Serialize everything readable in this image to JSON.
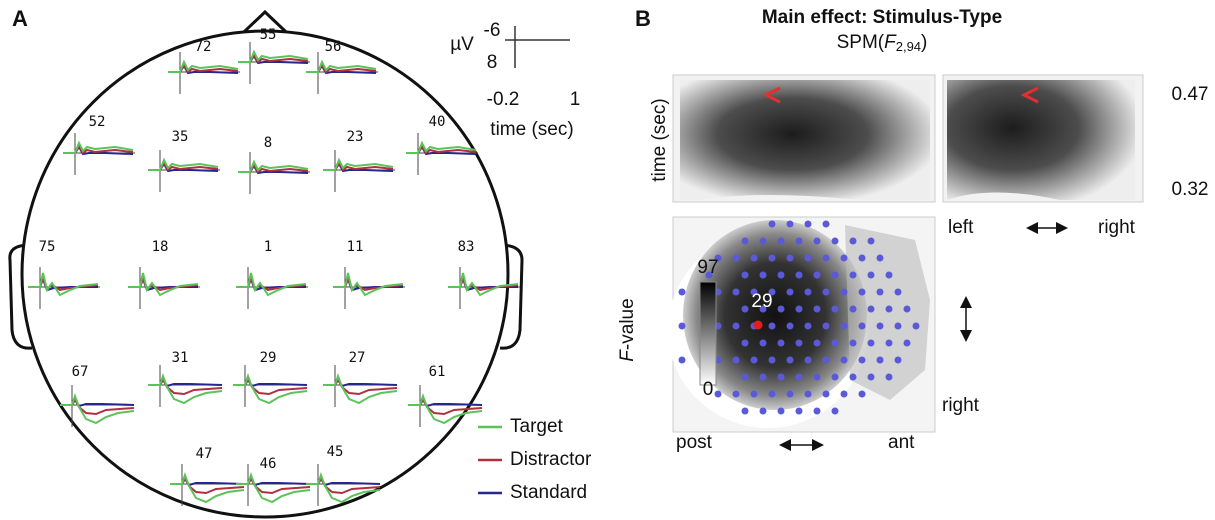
{
  "panel_a": {
    "label": "A",
    "electrodes": [
      "72",
      "55",
      "56",
      "52",
      "35",
      "8",
      "23",
      "40",
      "75",
      "18",
      "1",
      "11",
      "83",
      "67",
      "31",
      "29",
      "27",
      "61",
      "47",
      "46",
      "45"
    ],
    "scale": {
      "unit": "µV",
      "y_top": "-6",
      "y_bottom": "8",
      "x_left": "-0.2",
      "x_right": "1",
      "x_label": "time (sec)"
    },
    "legend": [
      {
        "name": "Target",
        "color": "#5cc35a"
      },
      {
        "name": "Distractor",
        "color": "#b0303f"
      },
      {
        "name": "Standard",
        "color": "#26268f"
      }
    ]
  },
  "panel_b": {
    "label": "B",
    "title": "Main effect: Stimulus-Type",
    "subtitle": {
      "prefix": "SPM(",
      "variable": "F",
      "subscript": "2,94",
      "suffix": ")"
    },
    "time_label": "time (sec)",
    "time_top": "0.47",
    "time_bottom": "0.32",
    "lr_left": "left",
    "lr_right": "right",
    "side_label": "right",
    "post": "post",
    "ant": "ant",
    "colorbar": {
      "label_var": "F",
      "label_rest": "-value",
      "max": 97,
      "min": 0
    },
    "peak_label": "29"
  }
}
